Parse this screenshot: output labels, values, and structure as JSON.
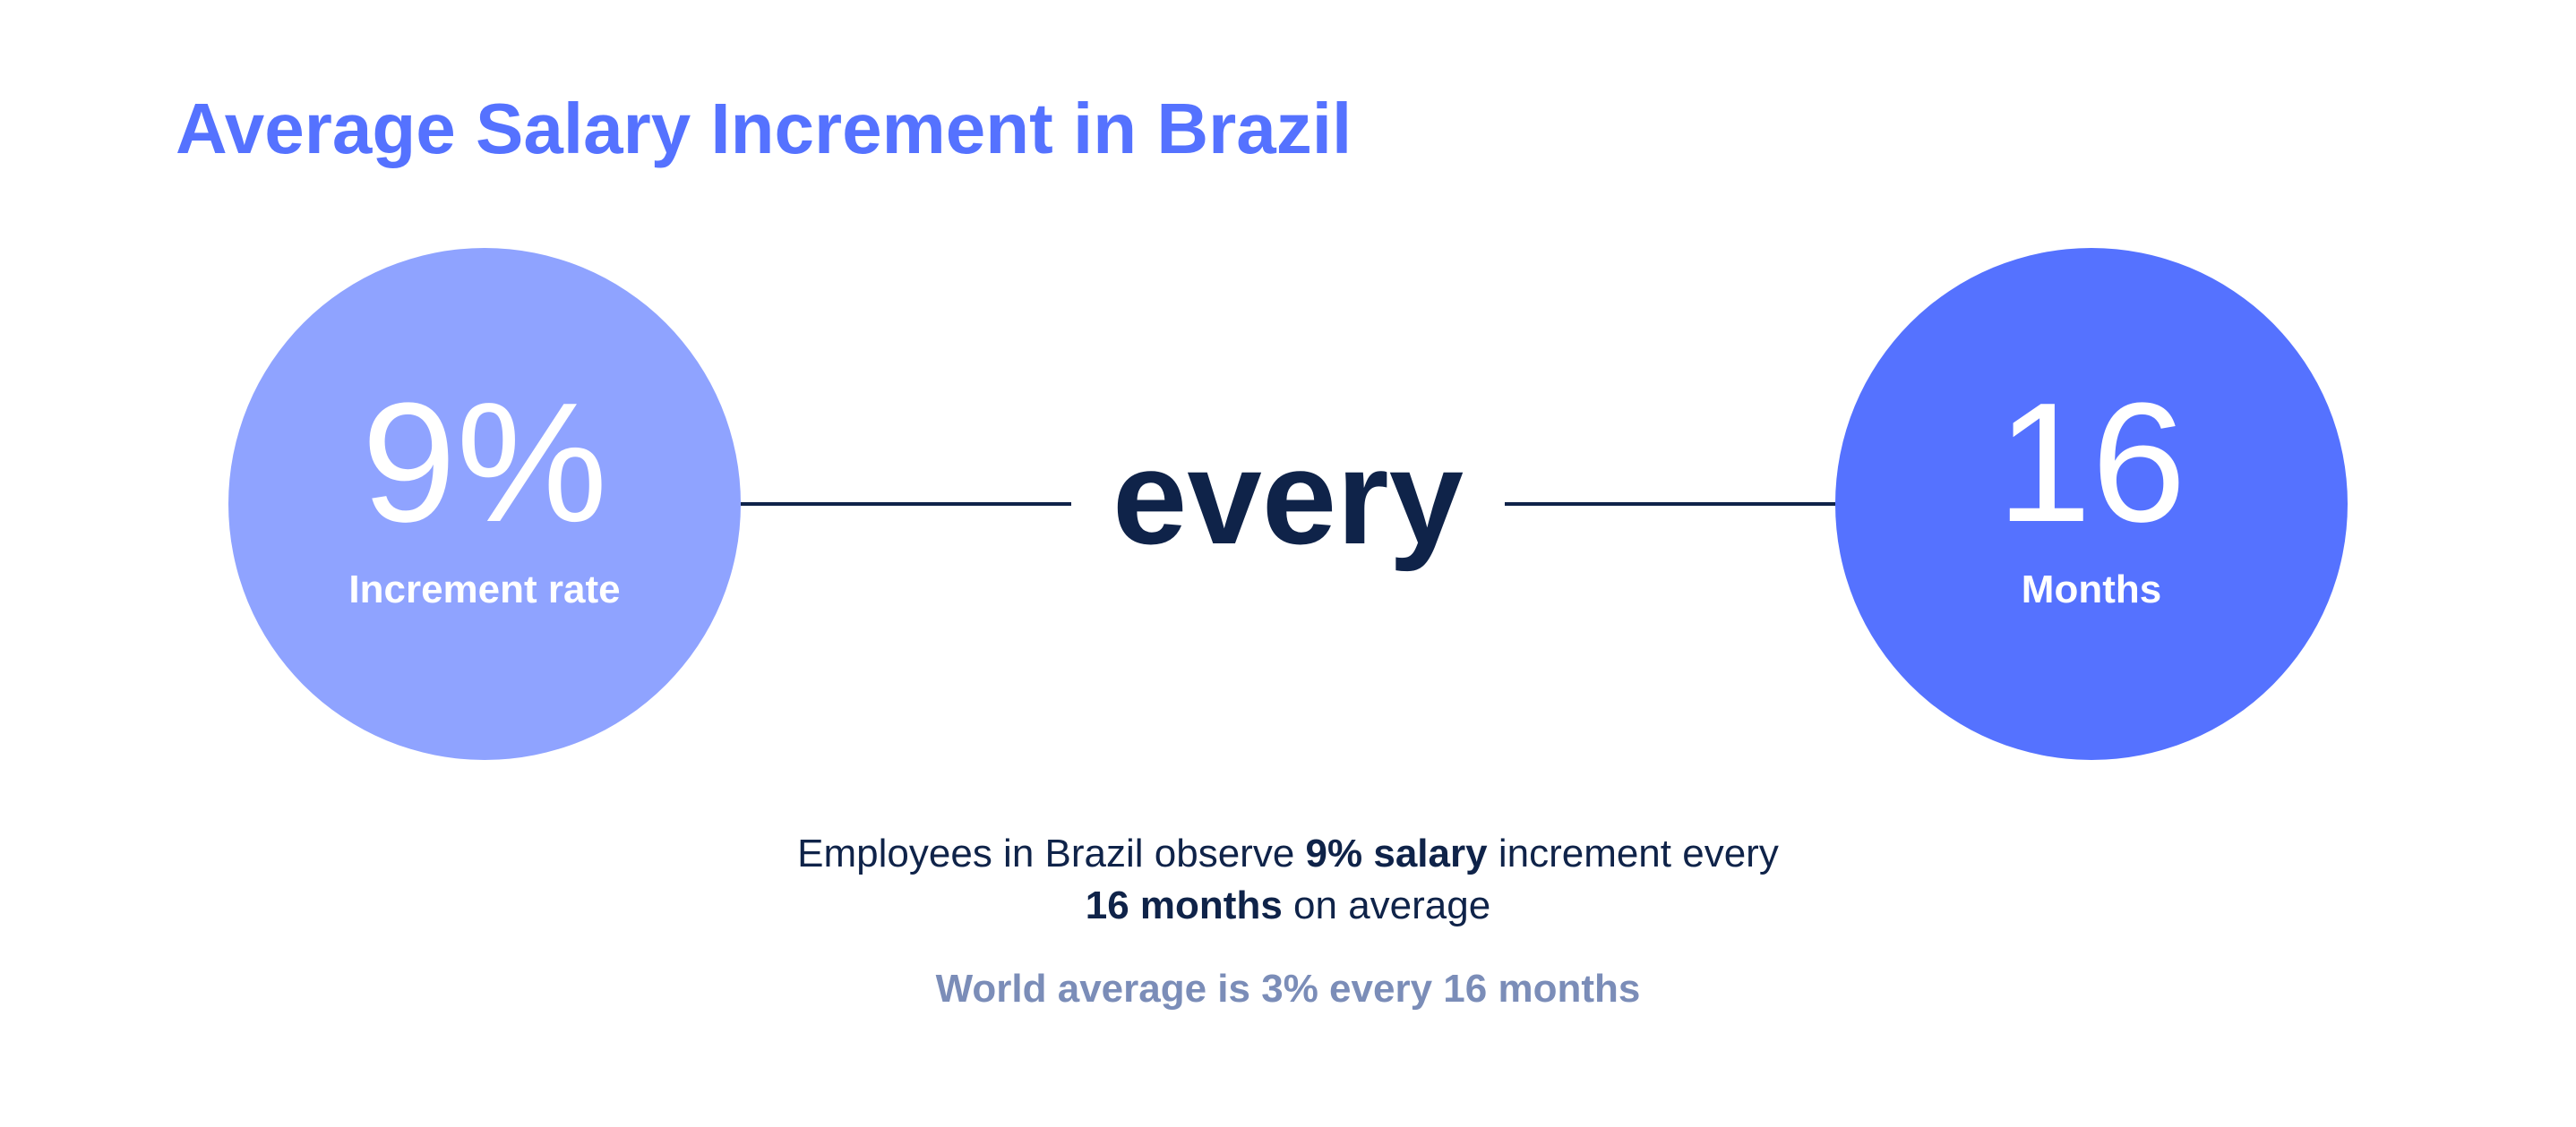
{
  "title": "Average Salary Increment in Brazil",
  "left_circle": {
    "value": "9%",
    "label": "Increment rate",
    "color": "#8fa3ff"
  },
  "connector": {
    "word": "every"
  },
  "right_circle": {
    "value": "16",
    "label": "Months",
    "color": "#5572ff"
  },
  "description": {
    "part1": "Employees in Brazil observe ",
    "bold1": "9% salary",
    "part2": " increment every",
    "bold2": "16 months",
    "part3": " on average"
  },
  "world_average": "World average is 3% every 16 months",
  "colors": {
    "accent": "#5572ff",
    "light_accent": "#8fa3ff",
    "dark_text": "#0f2349",
    "muted_text": "#7b8db8"
  }
}
